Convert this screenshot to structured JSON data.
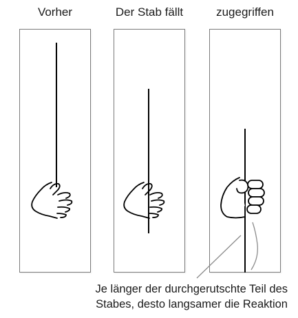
{
  "panels": [
    {
      "title": "Vorher"
    },
    {
      "title": "Der Stab fällt"
    },
    {
      "title": "zugegriffen"
    }
  ],
  "caption": {
    "line1": "Je länger der durchgerutschte Teil des",
    "line2": "Stabes, desto langsamer die Reaktion"
  }
}
